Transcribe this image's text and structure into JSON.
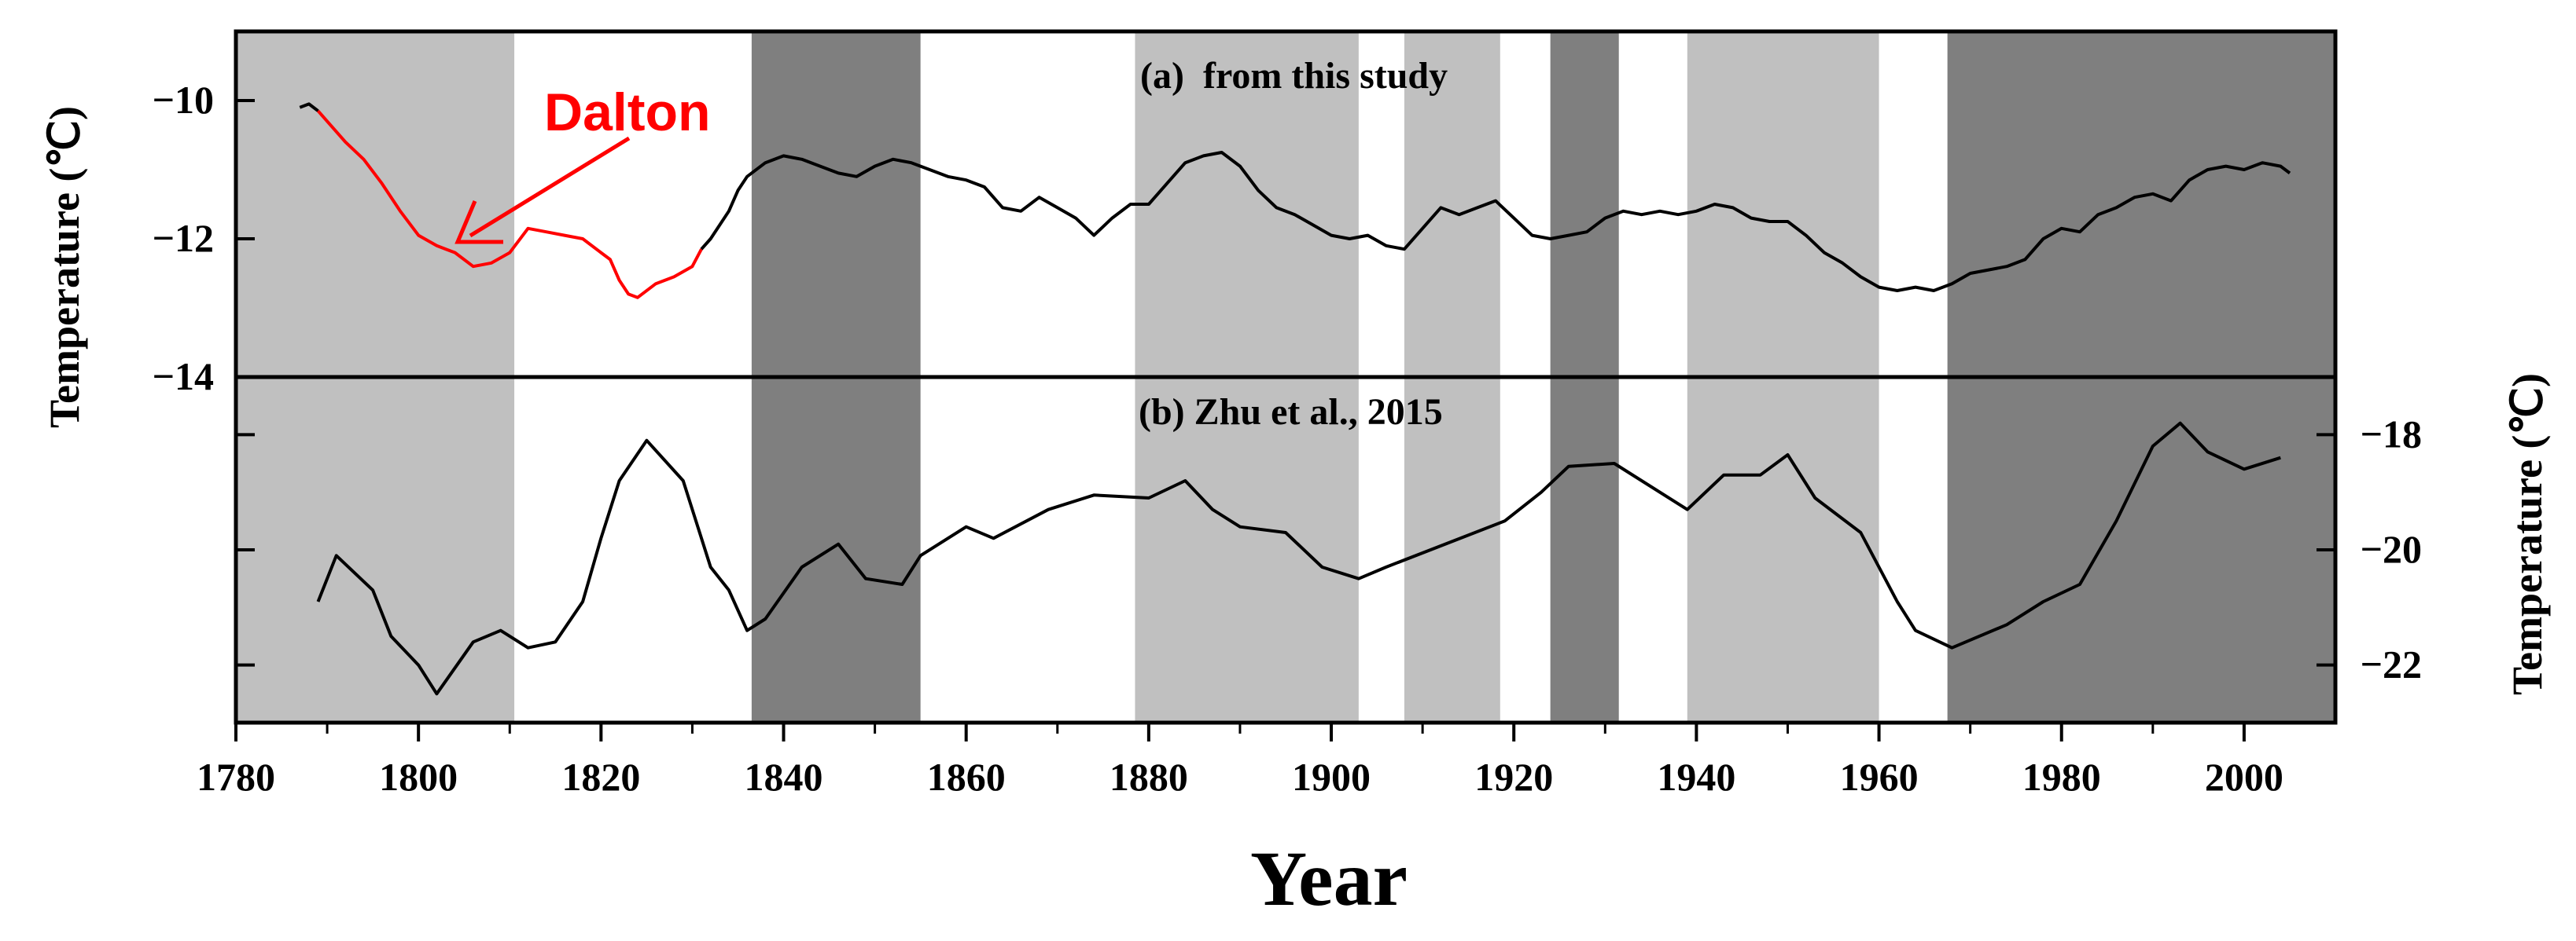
{
  "chart_data": {
    "type": "line",
    "xlabel": "Year",
    "xlim": [
      1780,
      2010
    ],
    "x_ticks": [
      "1780",
      "1800",
      "1820",
      "1840",
      "1860",
      "1880",
      "1900",
      "1920",
      "1940",
      "1960",
      "1980",
      "2000"
    ],
    "shaded_periods": [
      {
        "start": 1780,
        "end": 1810.5,
        "shade": "light"
      },
      {
        "start": 1836.5,
        "end": 1855,
        "shade": "dark"
      },
      {
        "start": 1878.5,
        "end": 1903,
        "shade": "light"
      },
      {
        "start": 1908,
        "end": 1918.5,
        "shade": "light"
      },
      {
        "start": 1924,
        "end": 1931.5,
        "shade": "dark"
      },
      {
        "start": 1939,
        "end": 1960,
        "shade": "light"
      },
      {
        "start": 1967.5,
        "end": 2010,
        "shade": "dark"
      }
    ],
    "colors": {
      "light": "#c0c0c0",
      "dark": "#7f7f7f",
      "line": "#000000",
      "highlight": "#ff0000"
    },
    "panels": [
      {
        "label": "(a)  from this study",
        "ylabel": "Temperature (℃)",
        "ylim": [
          -14,
          -9
        ],
        "y_ticks": [
          "-10",
          "-12",
          "-14"
        ],
        "y_tick_values": [
          -10,
          -12,
          -14
        ],
        "axis_side": "left",
        "series": [
          {
            "values": [
              [
                1787,
                -10.1
              ],
              [
                1788,
                -10.05
              ],
              [
                1789,
                -10.15
              ],
              [
                1790,
                -10.3
              ],
              [
                1792,
                -10.6
              ],
              [
                1794,
                -10.85
              ],
              [
                1796,
                -11.2
              ],
              [
                1798,
                -11.6
              ],
              [
                1800,
                -11.95
              ],
              [
                1802,
                -12.1
              ],
              [
                1803,
                -12.15
              ],
              [
                1804,
                -12.2
              ],
              [
                1806,
                -12.4
              ],
              [
                1808,
                -12.35
              ],
              [
                1810,
                -12.2
              ],
              [
                1812,
                -11.85
              ],
              [
                1814,
                -11.9
              ],
              [
                1816,
                -11.95
              ],
              [
                1818,
                -12.0
              ],
              [
                1820,
                -12.2
              ],
              [
                1821,
                -12.3
              ],
              [
                1822,
                -12.6
              ],
              [
                1823,
                -12.8
              ],
              [
                1824,
                -12.85
              ],
              [
                1826,
                -12.65
              ],
              [
                1828,
                -12.55
              ],
              [
                1830,
                -12.4
              ],
              [
                1831,
                -12.15
              ],
              [
                1832,
                -12.0
              ],
              [
                1834,
                -11.6
              ],
              [
                1835,
                -11.3
              ],
              [
                1836,
                -11.1
              ],
              [
                1838,
                -10.9
              ],
              [
                1840,
                -10.8
              ],
              [
                1842,
                -10.85
              ],
              [
                1844,
                -10.95
              ],
              [
                1846,
                -11.05
              ],
              [
                1848,
                -11.1
              ],
              [
                1850,
                -10.95
              ],
              [
                1852,
                -10.85
              ],
              [
                1854,
                -10.9
              ],
              [
                1856,
                -11.0
              ],
              [
                1858,
                -11.1
              ],
              [
                1860,
                -11.15
              ],
              [
                1862,
                -11.25
              ],
              [
                1864,
                -11.55
              ],
              [
                1866,
                -11.6
              ],
              [
                1868,
                -11.4
              ],
              [
                1870,
                -11.55
              ],
              [
                1872,
                -11.7
              ],
              [
                1874,
                -11.95
              ],
              [
                1876,
                -11.7
              ],
              [
                1878,
                -11.5
              ],
              [
                1880,
                -11.5
              ],
              [
                1882,
                -11.2
              ],
              [
                1884,
                -10.9
              ],
              [
                1886,
                -10.8
              ],
              [
                1888,
                -10.75
              ],
              [
                1890,
                -10.95
              ],
              [
                1892,
                -11.3
              ],
              [
                1894,
                -11.55
              ],
              [
                1896,
                -11.65
              ],
              [
                1898,
                -11.8
              ],
              [
                1900,
                -11.95
              ],
              [
                1902,
                -12.0
              ],
              [
                1904,
                -11.95
              ],
              [
                1906,
                -12.1
              ],
              [
                1908,
                -12.15
              ],
              [
                1910,
                -11.85
              ],
              [
                1912,
                -11.55
              ],
              [
                1914,
                -11.65
              ],
              [
                1916,
                -11.55
              ],
              [
                1918,
                -11.45
              ],
              [
                1920,
                -11.7
              ],
              [
                1922,
                -11.95
              ],
              [
                1924,
                -12.0
              ],
              [
                1926,
                -11.95
              ],
              [
                1928,
                -11.9
              ],
              [
                1930,
                -11.7
              ],
              [
                1932,
                -11.6
              ],
              [
                1934,
                -11.65
              ],
              [
                1936,
                -11.6
              ],
              [
                1938,
                -11.65
              ],
              [
                1940,
                -11.6
              ],
              [
                1942,
                -11.5
              ],
              [
                1944,
                -11.55
              ],
              [
                1946,
                -11.7
              ],
              [
                1948,
                -11.75
              ],
              [
                1950,
                -11.75
              ],
              [
                1952,
                -11.95
              ],
              [
                1954,
                -12.2
              ],
              [
                1956,
                -12.35
              ],
              [
                1958,
                -12.55
              ],
              [
                1960,
                -12.7
              ],
              [
                1962,
                -12.75
              ],
              [
                1964,
                -12.7
              ],
              [
                1966,
                -12.75
              ],
              [
                1968,
                -12.65
              ],
              [
                1970,
                -12.5
              ],
              [
                1972,
                -12.45
              ],
              [
                1974,
                -12.4
              ],
              [
                1976,
                -12.3
              ],
              [
                1978,
                -12.0
              ],
              [
                1980,
                -11.85
              ],
              [
                1982,
                -11.9
              ],
              [
                1984,
                -11.65
              ],
              [
                1986,
                -11.55
              ],
              [
                1988,
                -11.4
              ],
              [
                1990,
                -11.35
              ],
              [
                1992,
                -11.45
              ],
              [
                1994,
                -11.15
              ],
              [
                1996,
                -11.0
              ],
              [
                1998,
                -10.95
              ],
              [
                2000,
                -11.0
              ],
              [
                2002,
                -10.9
              ],
              [
                2004,
                -10.95
              ],
              [
                2005,
                -11.05
              ]
            ],
            "highlight_range": [
              1789,
              1831
            ]
          }
        ]
      },
      {
        "label": "(b) Zhu et al., 2015",
        "ylabel": "Temperature (℃)",
        "ylim": [
          -23,
          -17
        ],
        "y_ticks": [
          "-18",
          "-20",
          "-22"
        ],
        "y_tick_values": [
          -18,
          -20,
          -22
        ],
        "axis_side": "right",
        "series": [
          {
            "values": [
              [
                1789,
                -20.9
              ],
              [
                1791,
                -20.1
              ],
              [
                1795,
                -20.7
              ],
              [
                1797,
                -21.5
              ],
              [
                1800,
                -22.0
              ],
              [
                1802,
                -22.5
              ],
              [
                1806,
                -21.6
              ],
              [
                1809,
                -21.4
              ],
              [
                1812,
                -21.7
              ],
              [
                1815,
                -21.6
              ],
              [
                1818,
                -20.9
              ],
              [
                1820,
                -19.8
              ],
              [
                1822,
                -18.8
              ],
              [
                1825,
                -18.1
              ],
              [
                1829,
                -18.8
              ],
              [
                1832,
                -20.3
              ],
              [
                1834,
                -20.7
              ],
              [
                1836,
                -21.4
              ],
              [
                1838,
                -21.2
              ],
              [
                1842,
                -20.3
              ],
              [
                1846,
                -19.9
              ],
              [
                1849,
                -20.5
              ],
              [
                1853,
                -20.6
              ],
              [
                1855,
                -20.1
              ],
              [
                1860,
                -19.6
              ],
              [
                1863,
                -19.8
              ],
              [
                1869,
                -19.3
              ],
              [
                1874,
                -19.05
              ],
              [
                1880,
                -19.1
              ],
              [
                1884,
                -18.8
              ],
              [
                1887,
                -19.3
              ],
              [
                1890,
                -19.6
              ],
              [
                1895,
                -19.7
              ],
              [
                1899,
                -20.3
              ],
              [
                1903,
                -20.5
              ],
              [
                1906,
                -20.3
              ],
              [
                1919,
                -19.5
              ],
              [
                1923,
                -19.0
              ],
              [
                1926,
                -18.55
              ],
              [
                1931,
                -18.5
              ],
              [
                1939,
                -19.3
              ],
              [
                1943,
                -18.7
              ],
              [
                1947,
                -18.7
              ],
              [
                1950,
                -18.35
              ],
              [
                1953,
                -19.1
              ],
              [
                1958,
                -19.7
              ],
              [
                1962,
                -20.9
              ],
              [
                1964,
                -21.4
              ],
              [
                1968,
                -21.7
              ],
              [
                1974,
                -21.3
              ],
              [
                1978,
                -20.9
              ],
              [
                1982,
                -20.6
              ],
              [
                1986,
                -19.5
              ],
              [
                1990,
                -18.2
              ],
              [
                1993,
                -17.8
              ],
              [
                1996,
                -18.3
              ],
              [
                2000,
                -18.6
              ],
              [
                2004,
                -18.4
              ]
            ]
          }
        ]
      }
    ],
    "annotations": [
      {
        "text": "Dalton",
        "color": "#ff0000",
        "arrow_to": [
          1803,
          -12.0
        ]
      }
    ]
  }
}
